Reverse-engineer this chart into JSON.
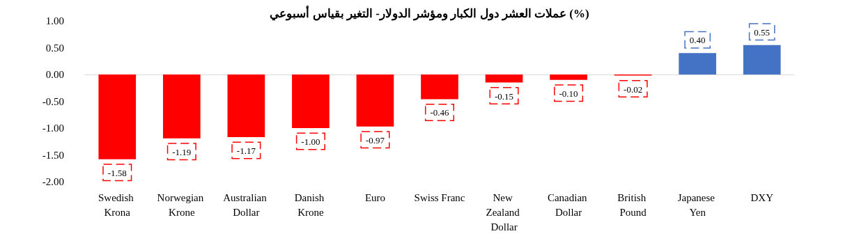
{
  "chart_data": {
    "type": "bar",
    "title": "عملات العشر دول الكبار ومؤشر الدولار- التغير بقياس أسبوعي (%)",
    "categories": [
      "Swedish Krona",
      "Norwegian Krone",
      "Australian Dollar",
      "Danish Krone",
      "Euro",
      "Swiss Franc",
      "New Zealand Dollar",
      "Canadian Dollar",
      "British Pound",
      "Japanese Yen",
      "DXY"
    ],
    "values": [
      -1.58,
      -1.19,
      -1.17,
      -1.0,
      -0.97,
      -0.46,
      -0.15,
      -0.1,
      -0.02,
      0.4,
      0.55
    ],
    "value_labels": [
      "-1.58",
      "-1.19",
      "-1.17",
      "-1.00",
      "-0.97",
      "-0.46",
      "-0.15",
      "-0.10",
      "-0.02",
      "0.40",
      "0.55"
    ],
    "colors": [
      "#ff0000",
      "#ff0000",
      "#ff0000",
      "#ff0000",
      "#ff0000",
      "#ff0000",
      "#ff0000",
      "#ff0000",
      "#ff0000",
      "#4472c4",
      "#4472c4"
    ],
    "ylim": [
      -2,
      1
    ],
    "yticks": [
      {
        "value": -2,
        "label": "-2.00"
      },
      {
        "value": -1.5,
        "label": "-1.50"
      },
      {
        "value": -1,
        "label": "-1.00"
      },
      {
        "value": -0.5,
        "label": "-0.50"
      },
      {
        "value": 0,
        "label": "0.00"
      },
      {
        "value": 0.5,
        "label": "0.50"
      },
      {
        "value": 1,
        "label": "1.00"
      }
    ],
    "tick_labels": true
  }
}
